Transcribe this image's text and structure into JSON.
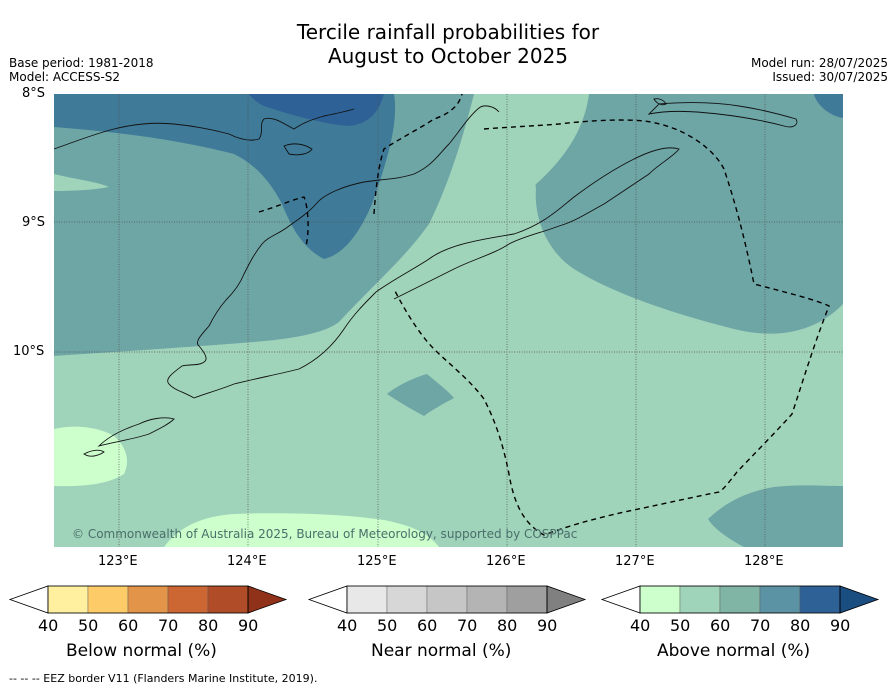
{
  "title": {
    "line1": "Tercile rainfall probabilities for",
    "line2": "August to October 2025"
  },
  "meta": {
    "base_period": "Base period: 1981-2018",
    "model": "Model: ACCESS-S2",
    "model_run": "Model run: 28/07/2025",
    "issued": "Issued: 30/07/2025"
  },
  "axes": {
    "lat_labels": [
      "8°S",
      "9°S",
      "10°S"
    ],
    "lon_labels": [
      "123°E",
      "124°E",
      "125°E",
      "126°E",
      "127°E",
      "128°E"
    ]
  },
  "copyright": "© Commonwealth of Australia 2025, Bureau of Meteorology, supported by COSPPac",
  "colorbars": [
    {
      "label": "Below normal (%)",
      "ticks": [
        "40",
        "50",
        "60",
        "70",
        "80",
        "90"
      ],
      "colors": [
        "#ffffff",
        "#fff0a0",
        "#fdcb68",
        "#e29548",
        "#cc6633",
        "#b04c27",
        "#8f3219"
      ]
    },
    {
      "label": "Near normal (%)",
      "ticks": [
        "40",
        "50",
        "60",
        "70",
        "80",
        "90"
      ],
      "colors": [
        "#ffffff",
        "#e8e8e8",
        "#d7d7d7",
        "#c6c6c6",
        "#b4b4b4",
        "#9f9f9f",
        "#808080"
      ]
    },
    {
      "label": "Above normal (%)",
      "ticks": [
        "40",
        "50",
        "60",
        "70",
        "80",
        "90"
      ],
      "colors": [
        "#ffffff",
        "#ccffcc",
        "#9fd3ba",
        "#80b5a6",
        "#5b93a5",
        "#2e6196",
        "#1a4d80"
      ]
    }
  ],
  "map_colors": {
    "c40_50": "#ccffcc",
    "c50_60": "#9fd3ba",
    "c60_70": "#6ea5a5",
    "c70_80": "#3f7a98",
    "c80_90": "#2e6196"
  },
  "footnote": "-- -- -- EEZ border V11 (Flanders Marine Institute, 2019)."
}
